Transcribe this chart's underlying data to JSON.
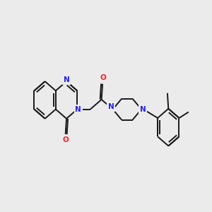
{
  "bg": "#ebebeb",
  "bond_color": "#1a1a1a",
  "N_color": "#2020ff",
  "O_color": "#ff2020",
  "font_size": 7.5,
  "lw": 1.4,
  "figsize": [
    3.0,
    3.0
  ],
  "dpi": 100,
  "xlim": [
    -1.0,
    9.5
  ],
  "ylim": [
    -1.5,
    5.5
  ]
}
